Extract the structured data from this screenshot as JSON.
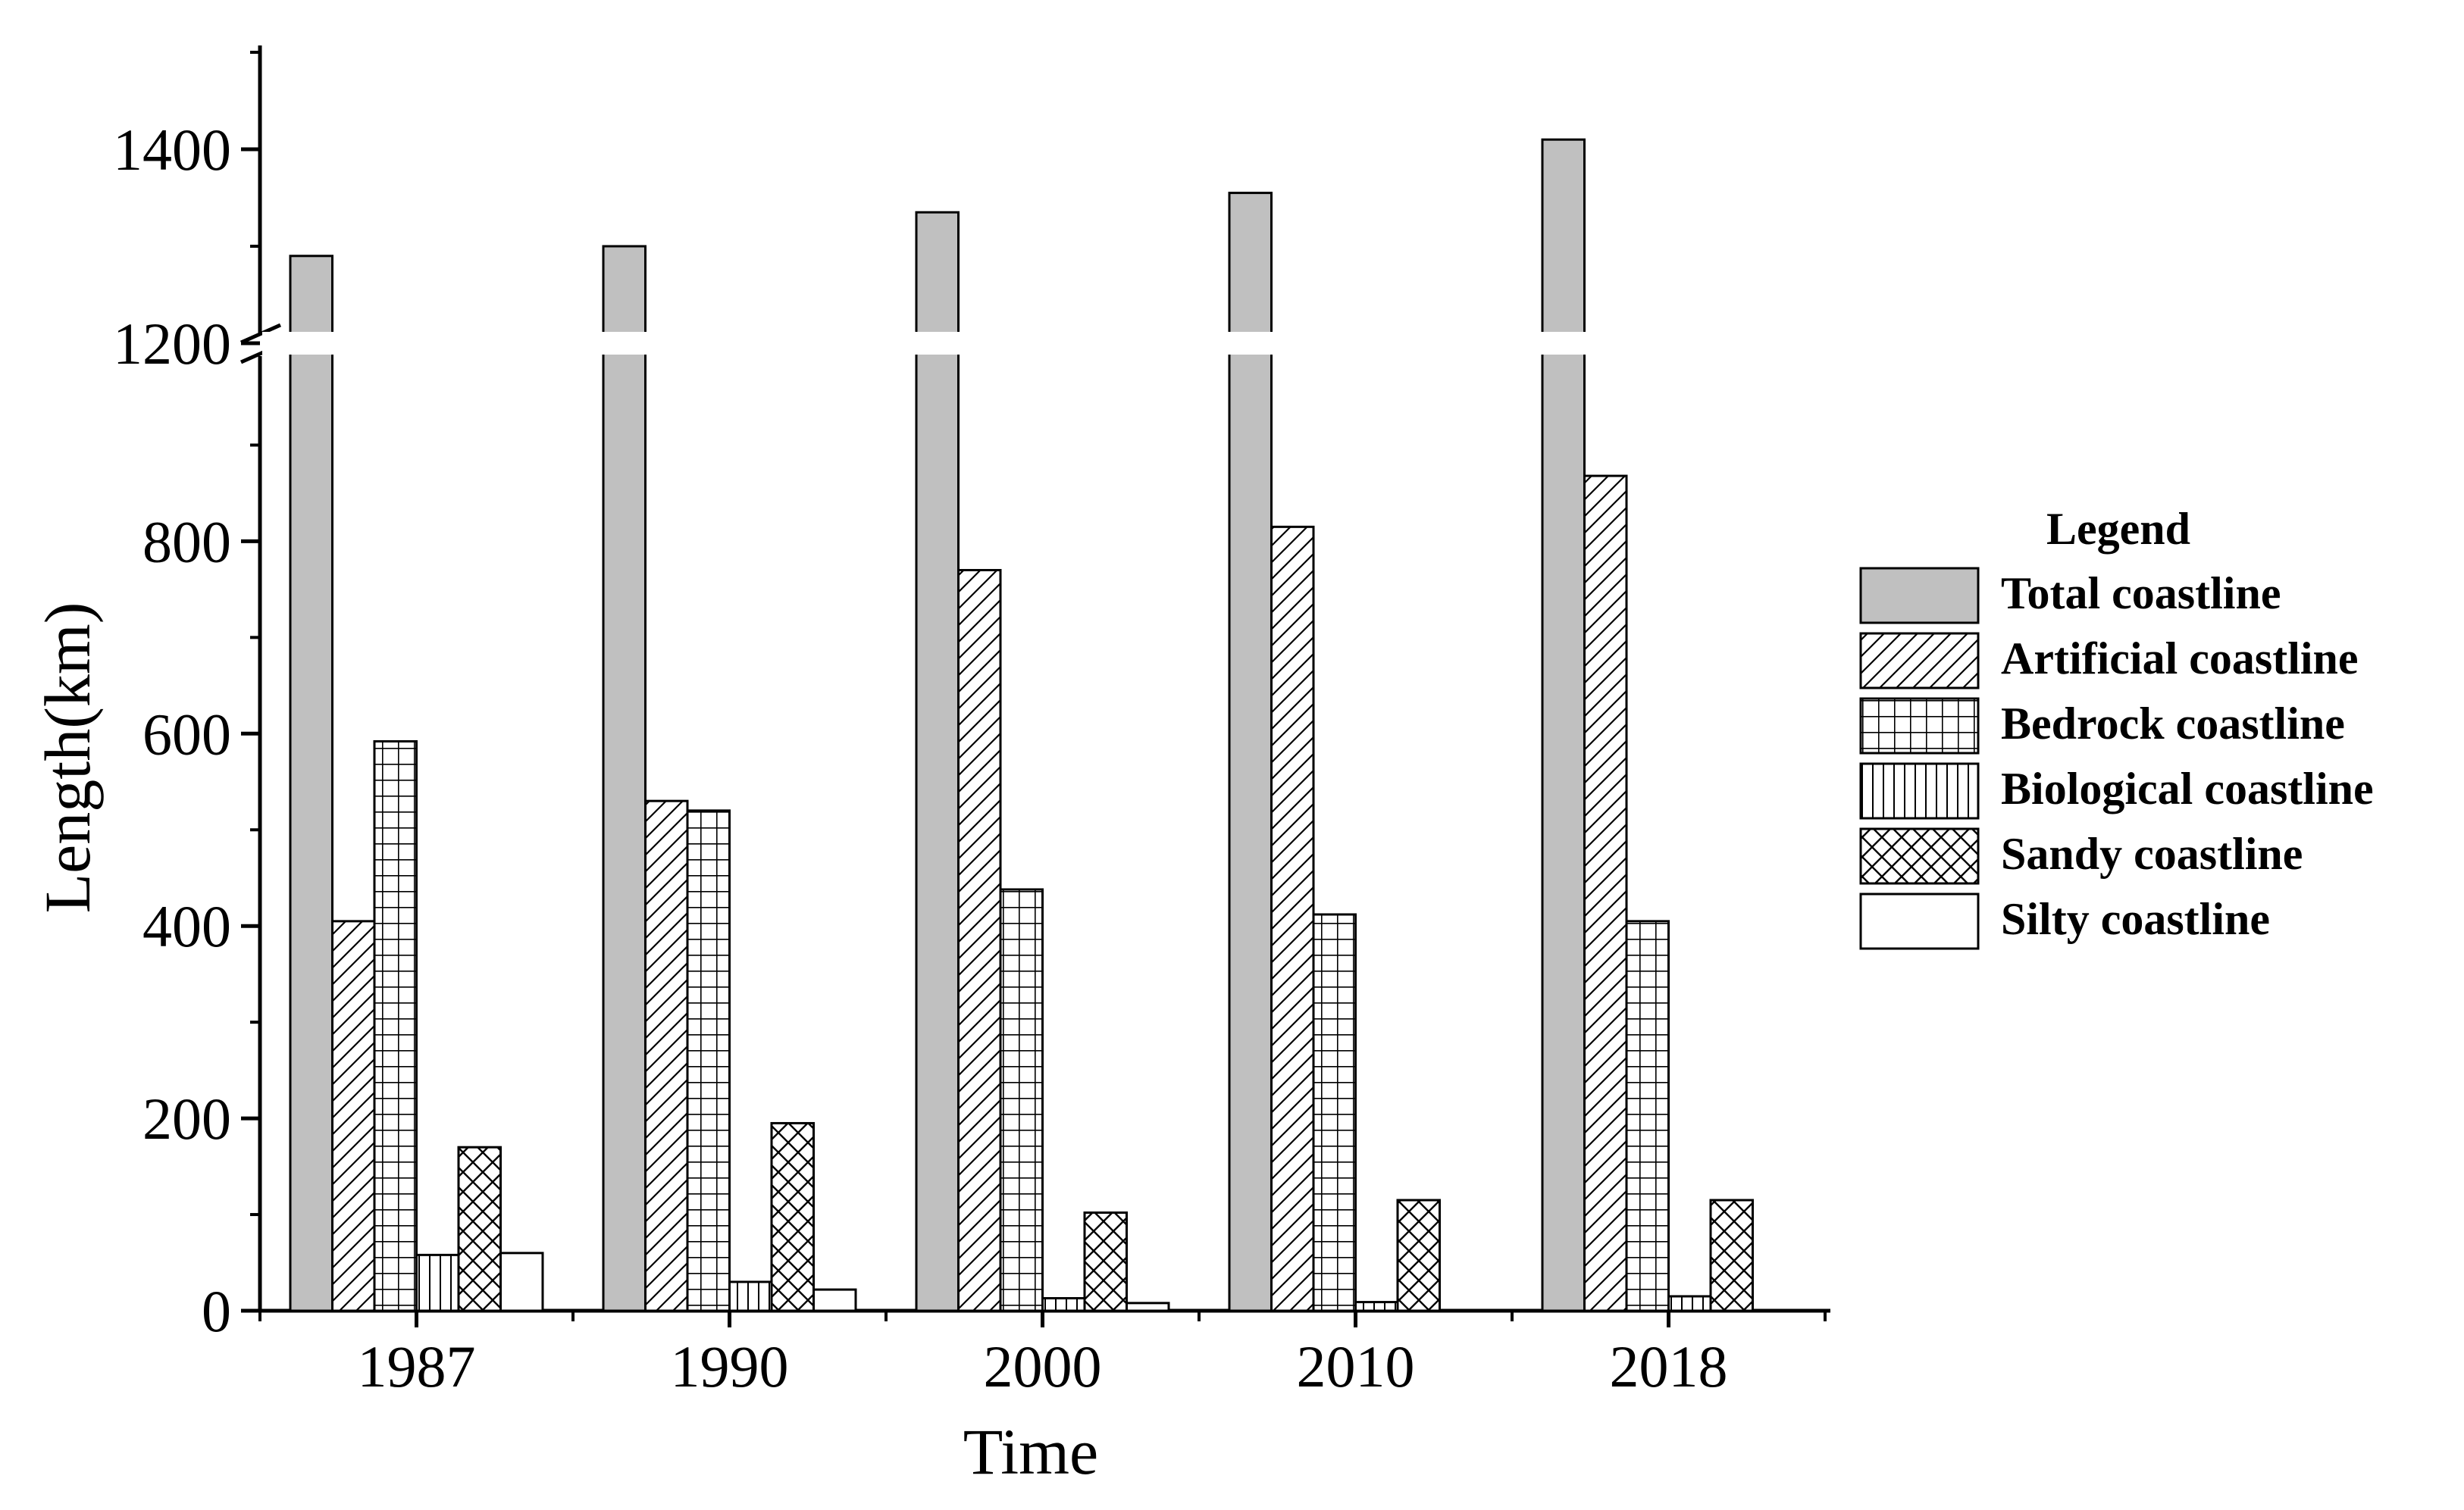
{
  "chart_data": {
    "type": "bar",
    "xlabel": "Time",
    "ylabel": "Length(km)",
    "categories": [
      "1987",
      "1990",
      "2000",
      "2010",
      "2018"
    ],
    "y_axis_break": {
      "lower_range": [
        0,
        1200
      ],
      "upper_range": [
        1200,
        1500
      ]
    },
    "y_ticks_lower": [
      0,
      200,
      400,
      600,
      800
    ],
    "y_ticks_upper": [
      1200,
      1400
    ],
    "legend_title": "Legend",
    "legend_position": "right",
    "grid": false,
    "series": [
      {
        "name": "Total coastline",
        "pattern": "solid-gray",
        "color": "#c0c0c0",
        "values": [
          1290,
          1300,
          1335,
          1355,
          1410
        ]
      },
      {
        "name": "Artificial coastline",
        "pattern": "diagonal-hatch",
        "values": [
          405,
          530,
          770,
          815,
          868
        ]
      },
      {
        "name": "Bedrock coastline",
        "pattern": "grid",
        "values": [
          592,
          520,
          438,
          412,
          405
        ]
      },
      {
        "name": "Biological coastline",
        "pattern": "vertical-lines",
        "values": [
          58,
          30,
          13,
          9,
          15
        ]
      },
      {
        "name": "Sandy coastline",
        "pattern": "crosshatch",
        "values": [
          170,
          195,
          102,
          115,
          115
        ]
      },
      {
        "name": "Silty coastline",
        "pattern": "empty",
        "values": [
          60,
          22,
          8,
          0,
          0
        ]
      }
    ]
  }
}
